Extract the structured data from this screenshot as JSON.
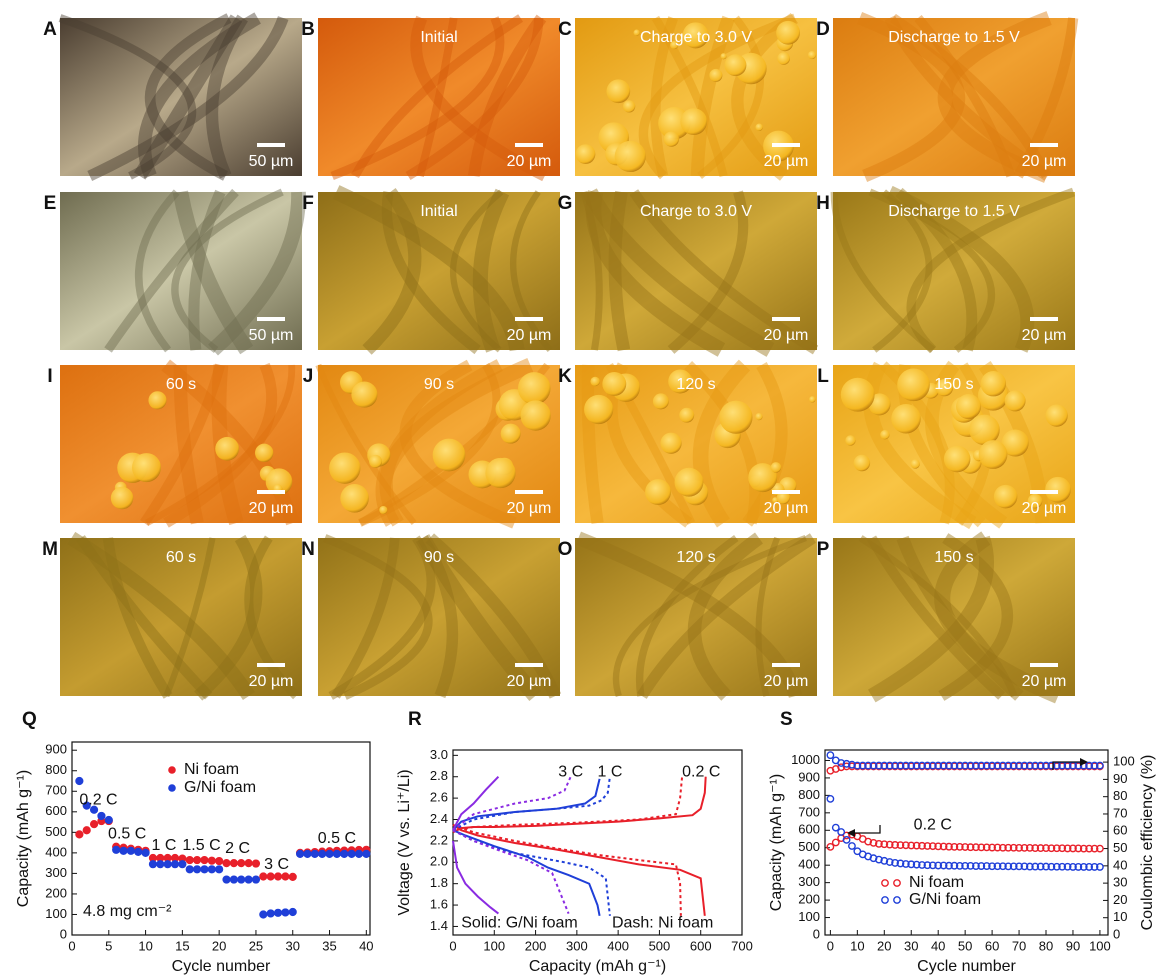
{
  "panels": [
    {
      "letter": "A",
      "scale": "50 µm"
    },
    {
      "letter": "B",
      "caption": "Initial",
      "scale": "20 µm"
    },
    {
      "letter": "C",
      "caption": "Charge to 3.0 V",
      "scale": "20 µm"
    },
    {
      "letter": "D",
      "caption": "Discharge to 1.5 V",
      "scale": "20 µm"
    },
    {
      "letter": "E",
      "scale": "50 µm"
    },
    {
      "letter": "F",
      "caption": "Initial",
      "scale": "20 µm"
    },
    {
      "letter": "G",
      "caption": "Charge to 3.0 V",
      "scale": "20 µm"
    },
    {
      "letter": "H",
      "caption": "Discharge to 1.5 V",
      "scale": "20 µm"
    },
    {
      "letter": "I",
      "caption": "60 s",
      "scale": "20 µm"
    },
    {
      "letter": "J",
      "caption": "90 s",
      "scale": "20 µm"
    },
    {
      "letter": "K",
      "caption": "120 s",
      "scale": "20 µm"
    },
    {
      "letter": "L",
      "caption": "150 s",
      "scale": "20 µm"
    },
    {
      "letter": "M",
      "caption": "60 s",
      "scale": "20 µm"
    },
    {
      "letter": "N",
      "caption": "90 s",
      "scale": "20 µm"
    },
    {
      "letter": "O",
      "caption": "120 s",
      "scale": "20 µm"
    },
    {
      "letter": "P",
      "caption": "150 s",
      "scale": "20 µm"
    }
  ],
  "chart_data": [
    {
      "type": "scatter",
      "panel": "Q",
      "x_label": "Cycle number",
      "y_label": "Capacity (mAh g⁻¹)",
      "xlim": [
        0,
        40.5
      ],
      "ylim": [
        0,
        940
      ],
      "xticks": [
        0,
        5,
        10,
        15,
        20,
        25,
        30,
        35,
        40
      ],
      "yticks": [
        0,
        100,
        200,
        300,
        400,
        500,
        600,
        700,
        800,
        900
      ],
      "marker": "filled",
      "x": [
        1,
        2,
        3,
        4,
        5,
        6,
        7,
        8,
        9,
        10,
        11,
        12,
        13,
        14,
        15,
        16,
        17,
        18,
        19,
        20,
        21,
        22,
        23,
        24,
        25,
        26,
        27,
        28,
        29,
        30,
        31,
        32,
        33,
        34,
        35,
        36,
        37,
        38,
        39,
        40
      ],
      "series": [
        {
          "name": "Ni foam",
          "color": "#e8202a",
          "values": [
            490,
            510,
            540,
            555,
            555,
            430,
            425,
            420,
            415,
            410,
            375,
            375,
            375,
            375,
            372,
            365,
            365,
            365,
            362,
            360,
            350,
            350,
            350,
            350,
            348,
            285,
            285,
            285,
            285,
            283,
            400,
            402,
            404,
            406,
            408,
            410,
            411,
            412,
            414,
            415
          ]
        },
        {
          "name": "G/Ni foam",
          "color": "#1f3fd8",
          "values": [
            750,
            630,
            610,
            580,
            560,
            415,
            410,
            410,
            405,
            400,
            345,
            345,
            345,
            345,
            345,
            320,
            320,
            320,
            320,
            320,
            270,
            270,
            270,
            270,
            270,
            100,
            105,
            108,
            110,
            112,
            395,
            395,
            395,
            395,
            395,
            395,
            395,
            395,
            395,
            395
          ]
        }
      ],
      "annotations": [
        "0.2 C",
        "0.5 C",
        "1 C",
        "1.5 C",
        "2 C",
        "3 C",
        "0.5 C",
        "4.8 mg cm⁻²"
      ]
    },
    {
      "type": "line",
      "panel": "R",
      "x_label": "Capacity (mAh g⁻¹)",
      "y_label": "Voltage (V vs. Li⁺/Li)",
      "xlim": [
        0,
        700
      ],
      "ylim": [
        1.32,
        3.05
      ],
      "xticks": [
        0,
        100,
        200,
        300,
        400,
        500,
        600,
        700
      ],
      "yticks": [
        1.4,
        1.6,
        1.8,
        {
          "value": 2.0,
          "label": "2.0"
        },
        2.2,
        2.4,
        2.6,
        2.8,
        {
          "value": 3.0,
          "label": "3.0"
        }
      ],
      "series": [
        {
          "color": "#e8202a",
          "dash": false,
          "x": [
            0,
            20,
            50,
            100,
            200,
            300,
            400,
            500,
            580,
            600,
            610,
            612
          ],
          "values": [
            2.28,
            2.32,
            2.33,
            2.33,
            2.34,
            2.36,
            2.38,
            2.41,
            2.44,
            2.5,
            2.65,
            2.8
          ]
        },
        {
          "color": "#e8202a",
          "dash": false,
          "x": [
            0,
            20,
            60,
            150,
            250,
            350,
            450,
            550,
            600,
            610
          ],
          "values": [
            2.35,
            2.3,
            2.25,
            2.18,
            2.12,
            2.05,
            1.98,
            1.93,
            1.85,
            1.5
          ]
        },
        {
          "color": "#e8202a",
          "dash": true,
          "x": [
            0,
            50,
            150,
            300,
            450,
            540,
            550,
            555
          ],
          "values": [
            2.3,
            2.33,
            2.35,
            2.37,
            2.4,
            2.45,
            2.6,
            2.8
          ]
        },
        {
          "color": "#e8202a",
          "dash": true,
          "x": [
            0,
            50,
            150,
            250,
            350,
            450,
            540,
            550,
            552
          ],
          "values": [
            2.35,
            2.28,
            2.2,
            2.13,
            2.07,
            2.02,
            1.98,
            1.8,
            1.5
          ]
        },
        {
          "color": "#1f3fd8",
          "dash": false,
          "x": [
            0,
            20,
            60,
            150,
            250,
            320,
            345,
            350,
            355
          ],
          "values": [
            2.3,
            2.38,
            2.43,
            2.47,
            2.5,
            2.55,
            2.62,
            2.7,
            2.78
          ]
        },
        {
          "color": "#1f3fd8",
          "dash": false,
          "x": [
            0,
            30,
            100,
            180,
            230,
            280,
            330,
            350,
            355
          ],
          "values": [
            2.3,
            2.25,
            2.15,
            2.05,
            1.95,
            1.88,
            1.8,
            1.6,
            1.5
          ]
        },
        {
          "color": "#1f3fd8",
          "dash": true,
          "x": [
            0,
            50,
            150,
            250,
            330,
            360,
            375,
            380
          ],
          "values": [
            2.3,
            2.4,
            2.47,
            2.5,
            2.53,
            2.58,
            2.65,
            2.8
          ]
        },
        {
          "color": "#1f3fd8",
          "dash": true,
          "x": [
            0,
            50,
            130,
            200,
            270,
            330,
            370,
            380
          ],
          "values": [
            2.3,
            2.2,
            2.1,
            2.05,
            2.0,
            1.95,
            1.85,
            1.5
          ]
        },
        {
          "color": "#8a2be2",
          "dash": false,
          "x": [
            0,
            20,
            50,
            80,
            110
          ],
          "values": [
            2.3,
            2.45,
            2.55,
            2.68,
            2.8
          ]
        },
        {
          "color": "#8a2be2",
          "dash": false,
          "x": [
            0,
            10,
            30,
            60,
            90,
            110
          ],
          "values": [
            2.2,
            1.95,
            1.8,
            1.68,
            1.58,
            1.52
          ]
        },
        {
          "color": "#8a2be2",
          "dash": true,
          "x": [
            0,
            50,
            150,
            230,
            270,
            285
          ],
          "values": [
            2.3,
            2.45,
            2.55,
            2.6,
            2.67,
            2.8
          ]
        },
        {
          "color": "#8a2be2",
          "dash": true,
          "x": [
            0,
            50,
            120,
            180,
            240,
            280
          ],
          "values": [
            2.3,
            2.2,
            2.1,
            2.02,
            1.9,
            1.52
          ]
        }
      ],
      "annotations": [
        "3 C",
        "1 C",
        "0.2 C",
        "Solid: G/Ni foam",
        "Dash: Ni foam"
      ]
    },
    {
      "type": "scatter",
      "panel": "S",
      "x_label": "Cycle number",
      "y_label": "Capacity (mAh g⁻¹)",
      "y2_label": "Coulombic efficiency (%)",
      "xlim": [
        -2,
        103
      ],
      "ylim": [
        0,
        1060
      ],
      "y2lim": [
        0,
        107
      ],
      "marker": "open",
      "xticks": [
        0,
        10,
        20,
        30,
        40,
        50,
        60,
        70,
        80,
        90,
        100
      ],
      "yticks": [
        0,
        100,
        200,
        300,
        400,
        500,
        600,
        700,
        800,
        900,
        1000
      ],
      "y2ticks": [
        0,
        10,
        20,
        30,
        40,
        50,
        60,
        70,
        80,
        90,
        100
      ],
      "x": [
        0,
        2,
        4,
        6,
        8,
        10,
        12,
        14,
        16,
        18,
        20,
        22,
        24,
        26,
        28,
        30,
        32,
        34,
        36,
        38,
        40,
        42,
        44,
        46,
        48,
        50,
        52,
        54,
        56,
        58,
        60,
        62,
        64,
        66,
        68,
        70,
        72,
        74,
        76,
        78,
        80,
        82,
        84,
        86,
        88,
        90,
        92,
        94,
        96,
        98,
        100
      ],
      "series": [
        {
          "name": "Ni foam",
          "color": "#e8202a",
          "values": [
            505,
            530,
            555,
            570,
            575,
            565,
            550,
            535,
            528,
            522,
            520,
            518,
            516,
            515,
            514,
            513,
            512,
            511,
            510,
            509,
            508,
            507,
            506,
            505,
            505,
            504,
            503,
            503,
            502,
            502,
            501,
            501,
            500,
            500,
            500,
            499,
            499,
            499,
            498,
            498,
            498,
            497,
            497,
            497,
            496,
            496,
            496,
            495,
            495,
            495,
            495
          ]
        },
        {
          "name": "G/Ni foam",
          "color": "#1f3fd8",
          "values": [
            780,
            615,
            590,
            545,
            510,
            480,
            462,
            450,
            440,
            432,
            425,
            418,
            413,
            410,
            407,
            405,
            403,
            401,
            400,
            399,
            398,
            398,
            397,
            397,
            396,
            396,
            396,
            395,
            395,
            395,
            394,
            394,
            394,
            393,
            393,
            393,
            393,
            392,
            392,
            392,
            392,
            391,
            391,
            391,
            391,
            390,
            390,
            390,
            390,
            390,
            390
          ]
        },
        {
          "color": "#e8202a",
          "axis": "y2",
          "values": [
            95,
            96,
            97,
            97.5,
            97.5,
            97.5,
            97.5,
            97.5,
            97.5,
            97.5,
            97.5,
            97.5,
            97.5,
            97.5,
            97.5,
            97.5,
            97.5,
            97.5,
            97.5,
            97.5,
            97.5,
            97.5,
            97.5,
            97.5,
            97.5,
            97.5,
            97.5,
            97.5,
            97.5,
            97.5,
            97.5,
            97.5,
            97.5,
            97.5,
            97.5,
            97.5,
            97.5,
            97.5,
            97.5,
            97.5,
            97.5,
            97.5,
            97.5,
            97.5,
            97.5,
            97.5,
            97.5,
            97.5,
            97.5,
            97.5,
            97.5
          ]
        },
        {
          "color": "#1f3fd8",
          "axis": "y2",
          "values": [
            104,
            101,
            99.5,
            99,
            98.5,
            98,
            98,
            98,
            98,
            98,
            98,
            98,
            98,
            98,
            98,
            98,
            98,
            98,
            98,
            98,
            98,
            98,
            98,
            98,
            98,
            98,
            98,
            98,
            98,
            98,
            98,
            98,
            98,
            98,
            98,
            98,
            98,
            98,
            98,
            98,
            98,
            98,
            98,
            98,
            98,
            98,
            98,
            98,
            98,
            98,
            98
          ]
        }
      ],
      "annotations": [
        "0.2 C"
      ]
    }
  ]
}
